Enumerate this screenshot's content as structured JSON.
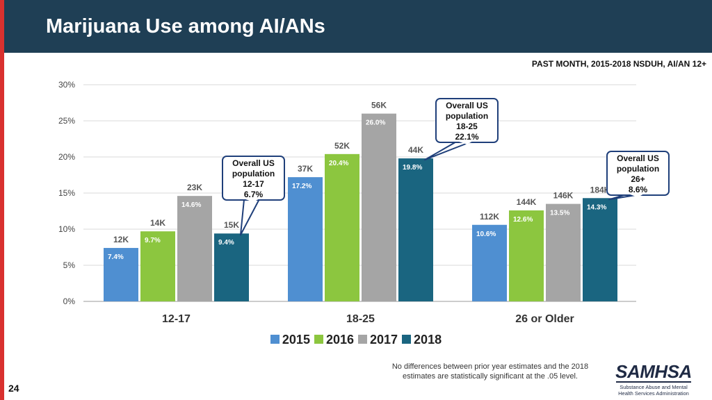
{
  "header": {
    "title": "Marijuana Use among AI/ANs",
    "subtitle": "PAST MONTH, 2015-2018 NSDUH, AI/AN 12+"
  },
  "footnote": "No differences between prior year estimates and the 2018 estimates are statistically significant at the .05 level.",
  "slide_number": "24",
  "logo": {
    "word": "SAMHSA",
    "sub": "Substance Abuse and Mental Health Services Administration"
  },
  "colors": {
    "2015": "#4f8fd1",
    "2016": "#8cc63f",
    "2017": "#a5a5a5",
    "2018": "#1a6580"
  },
  "chart_data": {
    "type": "bar",
    "categories": [
      "12-17",
      "18-25",
      "26 or Older"
    ],
    "series": [
      {
        "name": "2015",
        "values": [
          7.4,
          17.2,
          10.6
        ],
        "counts": [
          "12K",
          "37K",
          "112K"
        ]
      },
      {
        "name": "2016",
        "values": [
          9.7,
          20.4,
          12.6
        ],
        "counts": [
          "14K",
          "52K",
          "144K"
        ]
      },
      {
        "name": "2017",
        "values": [
          14.6,
          26.0,
          13.5
        ],
        "counts": [
          "23K",
          "56K",
          "146K"
        ]
      },
      {
        "name": "2018",
        "values": [
          9.4,
          19.8,
          14.3
        ],
        "counts": [
          "15K",
          "44K",
          "184K"
        ]
      }
    ],
    "ylim": [
      0,
      30
    ],
    "yticks": [
      "0%",
      "5%",
      "10%",
      "15%",
      "20%",
      "25%",
      "30%"
    ],
    "grid": true,
    "legend": "bottom",
    "callouts": [
      {
        "category": "12-17",
        "lines": [
          "Overall US",
          "population",
          "12-17",
          "6.7%"
        ]
      },
      {
        "category": "18-25",
        "lines": [
          "Overall US",
          "population",
          "18-25",
          "22.1%"
        ]
      },
      {
        "category": "26 or Older",
        "lines": [
          "Overall US",
          "population",
          "26+",
          "8.6%"
        ]
      }
    ]
  }
}
